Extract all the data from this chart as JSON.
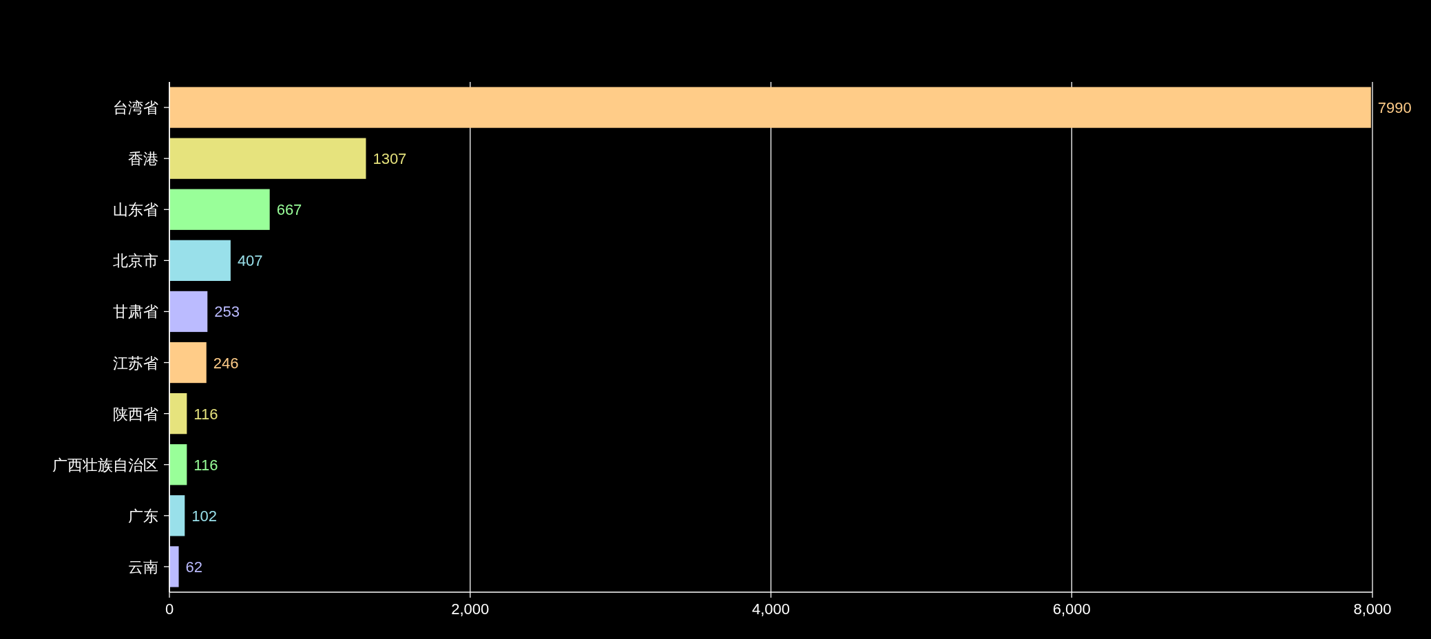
{
  "chart_data": {
    "type": "bar",
    "orientation": "horizontal",
    "categories": [
      "台湾省",
      "香港",
      "山东省",
      "北京市",
      "甘肃省",
      "江苏省",
      "陕西省",
      "广西壮族自治区",
      "广东",
      "云南"
    ],
    "values": [
      7990,
      1307,
      667,
      407,
      253,
      246,
      116,
      116,
      102,
      62
    ],
    "colors": [
      "#ffcc88",
      "#e6e37d",
      "#99ff99",
      "#99e0ea",
      "#bbbbff",
      "#ffcc88",
      "#e6e37d",
      "#99ff99",
      "#99e0ea",
      "#bbbbff"
    ],
    "data_labels": true,
    "xlim": [
      0,
      8000
    ],
    "xticks": [
      0,
      {
        "value": 2000,
        "label": "2,000"
      },
      {
        "value": 4000,
        "label": "4,000"
      },
      {
        "value": 6000,
        "label": "6,000"
      },
      {
        "value": 8000,
        "label": "8,000"
      }
    ],
    "grid": "x"
  }
}
